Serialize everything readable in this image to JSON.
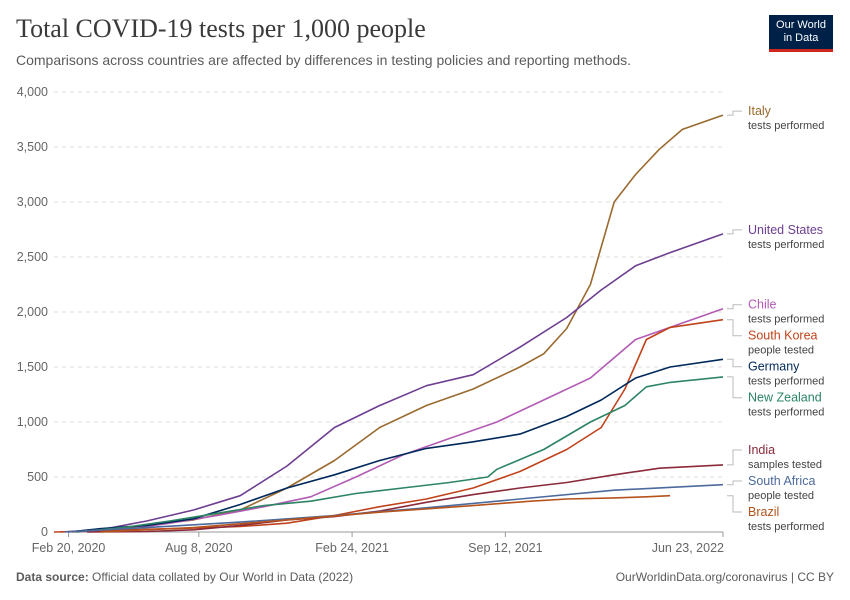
{
  "header": {
    "title": "Total COVID-19 tests per 1,000 people",
    "subtitle": "Comparisons across countries are affected by differences in testing policies and reporting methods."
  },
  "logo": {
    "line1": "Our World",
    "line2": "in Data",
    "bg_color": "#002147",
    "accent_color": "#ce261e"
  },
  "footer": {
    "source_label": "Data source:",
    "source_text": "Official data collated by Our World in Data (2022)",
    "right_text": "OurWorldinData.org/coronavirus | CC BY"
  },
  "chart_data": {
    "type": "line",
    "title": "Total COVID-19 tests per 1,000 people",
    "subtitle": "Comparisons across countries are affected by differences in testing policies and reporting methods.",
    "x_start": "2020-02-01",
    "x_end": "2022-06-23",
    "x_ticks": [
      {
        "date": "2020-02-20",
        "label": "Feb 20, 2020"
      },
      {
        "date": "2020-08-08",
        "label": "Aug 8, 2020"
      },
      {
        "date": "2021-02-24",
        "label": "Feb 24, 2021"
      },
      {
        "date": "2021-09-12",
        "label": "Sep 12, 2021"
      },
      {
        "date": "2022-06-23",
        "label": "Jun 23, 2022"
      }
    ],
    "y_ticks": [
      0,
      500,
      1000,
      1500,
      2000,
      2500,
      3000,
      3500,
      4000
    ],
    "y_tick_labels": [
      "0",
      "500",
      "1,000",
      "1,500",
      "2,000",
      "2,500",
      "3,000",
      "3,500",
      "4,000"
    ],
    "ylim": [
      0,
      4000
    ],
    "grid": "horizontal dashed",
    "legend": "right, labels at line ends",
    "series": [
      {
        "name": "Italy",
        "sub": "tests performed",
        "color": "#9a6a2f",
        "x": [
          "2020-02-25",
          "2020-04-01",
          "2020-06-01",
          "2020-08-01",
          "2020-10-01",
          "2020-12-01",
          "2021-02-01",
          "2021-04-01",
          "2021-06-01",
          "2021-08-01",
          "2021-10-01",
          "2021-11-01",
          "2021-12-01",
          "2022-01-01",
          "2022-02-01",
          "2022-03-01",
          "2022-04-01",
          "2022-05-01",
          "2022-06-23"
        ],
        "y": [
          0,
          15,
          60,
          110,
          200,
          400,
          650,
          950,
          1150,
          1300,
          1500,
          1620,
          1850,
          2250,
          3000,
          3250,
          3480,
          3660,
          3790
        ]
      },
      {
        "name": "United States",
        "sub": "tests performed",
        "color": "#6d3e91",
        "x": [
          "2020-02-10",
          "2020-04-01",
          "2020-06-01",
          "2020-08-01",
          "2020-10-01",
          "2020-12-01",
          "2021-02-01",
          "2021-04-01",
          "2021-06-01",
          "2021-08-01",
          "2021-10-01",
          "2021-12-01",
          "2022-01-15",
          "2022-03-01",
          "2022-04-15",
          "2022-06-23"
        ],
        "y": [
          0,
          20,
          100,
          200,
          330,
          600,
          950,
          1150,
          1330,
          1430,
          1680,
          1950,
          2200,
          2420,
          2540,
          2710
        ]
      },
      {
        "name": "Chile",
        "sub": "tests performed",
        "color": "#b25bb5",
        "x": [
          "2020-03-01",
          "2020-05-01",
          "2020-07-01",
          "2020-09-01",
          "2020-11-01",
          "2021-01-01",
          "2021-03-01",
          "2021-05-01",
          "2021-07-01",
          "2021-09-01",
          "2021-11-01",
          "2022-01-01",
          "2022-03-01",
          "2022-05-01",
          "2022-06-23"
        ],
        "y": [
          0,
          20,
          80,
          150,
          230,
          320,
          500,
          700,
          850,
          1000,
          1200,
          1400,
          1750,
          1900,
          2030
        ]
      },
      {
        "name": "South Korea",
        "sub": "people tested",
        "color": "#c0431c",
        "x": [
          "2020-02-01",
          "2020-04-01",
          "2020-06-01",
          "2020-08-01",
          "2020-10-01",
          "2020-12-01",
          "2021-02-01",
          "2021-04-01",
          "2021-06-01",
          "2021-08-01",
          "2021-10-01",
          "2021-12-01",
          "2022-01-15",
          "2022-02-15",
          "2022-03-15",
          "2022-04-15",
          "2022-06-23"
        ],
        "y": [
          0,
          10,
          25,
          35,
          50,
          80,
          150,
          230,
          300,
          400,
          550,
          750,
          950,
          1300,
          1750,
          1860,
          1930
        ]
      },
      {
        "name": "Germany",
        "sub": "tests performed",
        "color": "#00295b",
        "x": [
          "2020-02-20",
          "2020-04-01",
          "2020-06-01",
          "2020-08-01",
          "2020-10-01",
          "2020-12-01",
          "2021-02-01",
          "2021-04-01",
          "2021-06-01",
          "2021-08-01",
          "2021-10-01",
          "2021-12-01",
          "2022-01-15",
          "2022-03-01",
          "2022-04-15",
          "2022-06-23"
        ],
        "y": [
          0,
          30,
          60,
          120,
          250,
          400,
          520,
          650,
          760,
          820,
          890,
          1050,
          1200,
          1400,
          1500,
          1570
        ]
      },
      {
        "name": "New Zealand",
        "sub": "tests performed",
        "color": "#2c8465",
        "x": [
          "2020-03-01",
          "2020-05-01",
          "2020-07-01",
          "2020-09-01",
          "2020-11-01",
          "2021-01-01",
          "2021-03-01",
          "2021-05-01",
          "2021-07-01",
          "2021-08-20",
          "2021-09-01",
          "2021-11-01",
          "2022-01-01",
          "2022-02-15",
          "2022-03-15",
          "2022-04-15",
          "2022-06-23"
        ],
        "y": [
          0,
          40,
          100,
          170,
          240,
          280,
          350,
          400,
          450,
          500,
          570,
          750,
          1000,
          1150,
          1320,
          1360,
          1410
        ]
      },
      {
        "name": "India",
        "sub": "samples tested",
        "color": "#8a2a3a",
        "x": [
          "2020-03-15",
          "2020-06-01",
          "2020-08-01",
          "2020-10-01",
          "2020-12-01",
          "2021-02-01",
          "2021-04-01",
          "2021-06-01",
          "2021-08-01",
          "2021-10-01",
          "2021-12-01",
          "2022-02-01",
          "2022-04-01",
          "2022-06-23"
        ],
        "y": [
          0,
          5,
          20,
          60,
          110,
          140,
          190,
          270,
          340,
          400,
          450,
          520,
          580,
          610
        ]
      },
      {
        "name": "South Africa",
        "sub": "people tested",
        "color": "#4c6a9c",
        "x": [
          "2020-02-15",
          "2020-06-01",
          "2020-10-01",
          "2021-02-01",
          "2021-06-01",
          "2021-10-01",
          "2022-02-01",
          "2022-06-23"
        ],
        "y": [
          0,
          40,
          90,
          150,
          220,
          300,
          380,
          430
        ]
      },
      {
        "name": "Brazil",
        "sub": "tests performed",
        "color": "#b6531c",
        "x": [
          "2020-04-01",
          "2020-08-01",
          "2020-12-01",
          "2021-04-01",
          "2021-08-01",
          "2021-10-15",
          "2021-12-01",
          "2022-02-01",
          "2022-03-15",
          "2022-04-15"
        ],
        "y": [
          0,
          40,
          110,
          180,
          240,
          280,
          300,
          310,
          320,
          330
        ]
      }
    ]
  }
}
